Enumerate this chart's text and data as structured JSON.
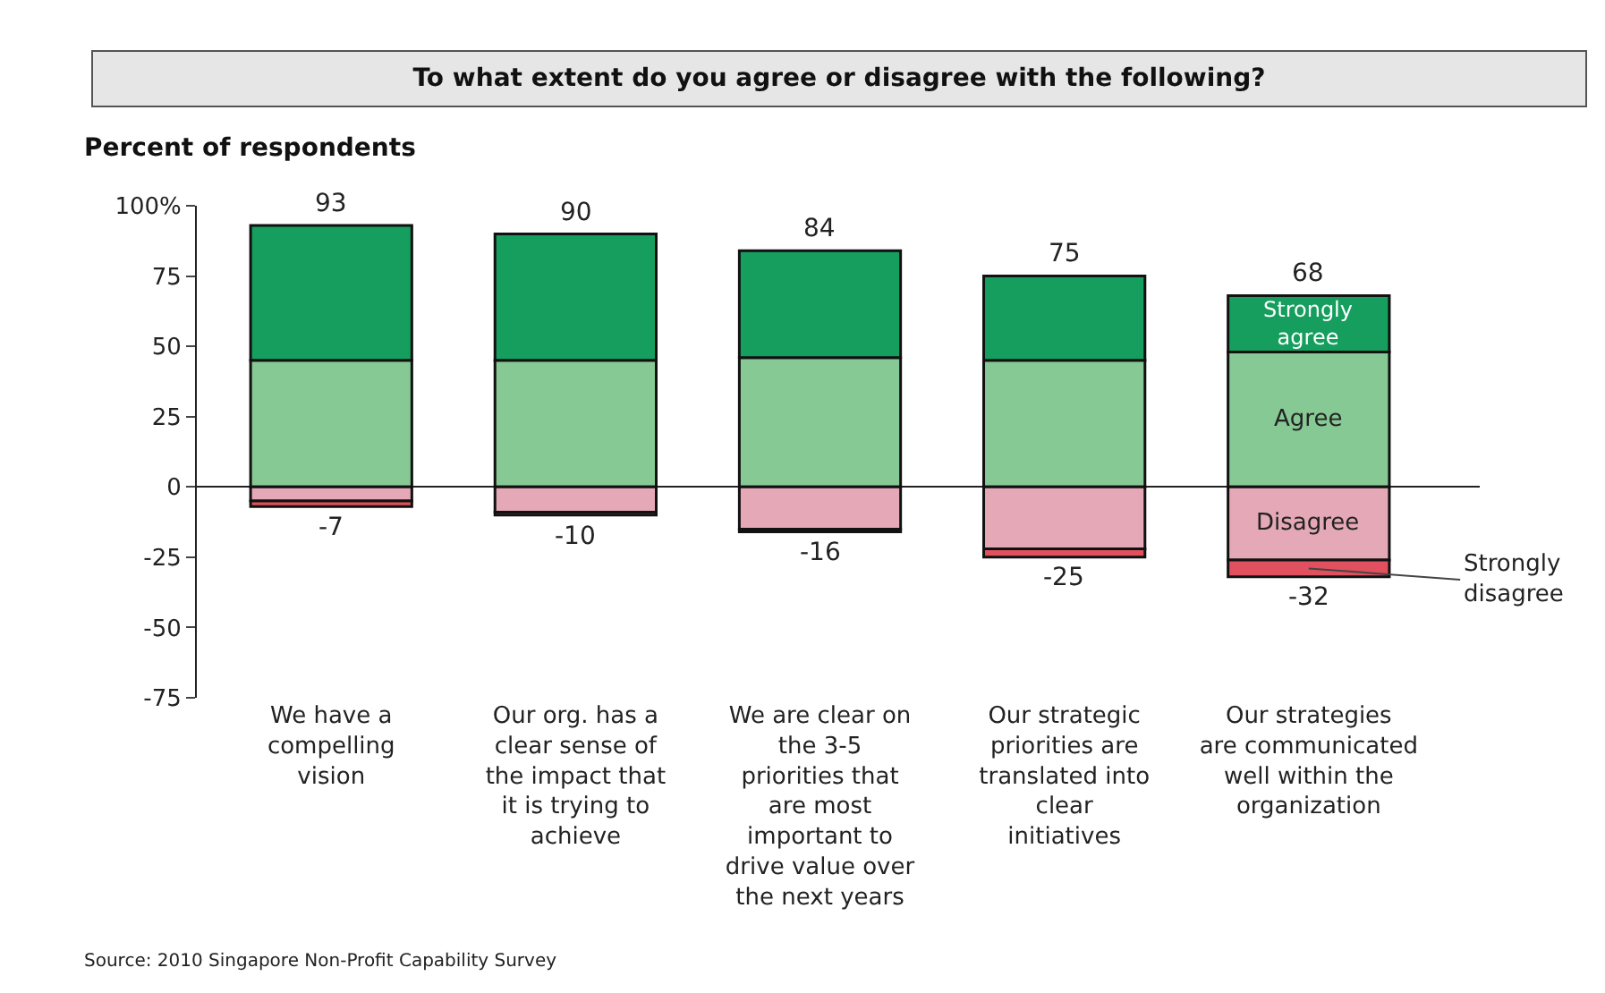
{
  "chart_data": {
    "type": "bar",
    "stacked": true,
    "title": "To what extent do you agree or disagree with the following?",
    "ylabel": "Percent of respondents",
    "categories": [
      "We have a compelling vision",
      "Our org. has a clear sense of the impact that it is trying to achieve",
      "We are clear on the 3-5 priorities that are most important to drive value over the next years",
      "Our strategic priorities are translated into clear initiatives",
      "Our strategies are communicated well within the organization"
    ],
    "series": [
      {
        "name": "Agree",
        "color": "#86c994",
        "values": [
          45,
          45,
          46,
          45,
          48
        ]
      },
      {
        "name": "Strongly agree",
        "color": "#159e5e",
        "values": [
          48,
          45,
          38,
          30,
          20
        ]
      },
      {
        "name": "Disagree",
        "color": "#e5a8b6",
        "values": [
          -5,
          -9,
          -15,
          -22,
          -26
        ]
      },
      {
        "name": "Strongly disagree",
        "color": "#e0505e",
        "values": [
          -2,
          -1,
          -1,
          -3,
          -6
        ]
      }
    ],
    "totals": [
      [
        "93",
        "-7"
      ],
      [
        "90",
        "-10"
      ],
      [
        "84",
        "-16"
      ],
      [
        "75",
        "-25"
      ],
      [
        "68",
        "-32"
      ]
    ],
    "ylim": [
      -75,
      100
    ],
    "yticks": [
      {
        "value": 100,
        "label": "100%"
      },
      75,
      50,
      25,
      0,
      -25,
      -50,
      -75
    ],
    "legend": false,
    "annotations": [
      "Source: 2010 Singapore Non-Profit Capability Survey"
    ]
  }
}
